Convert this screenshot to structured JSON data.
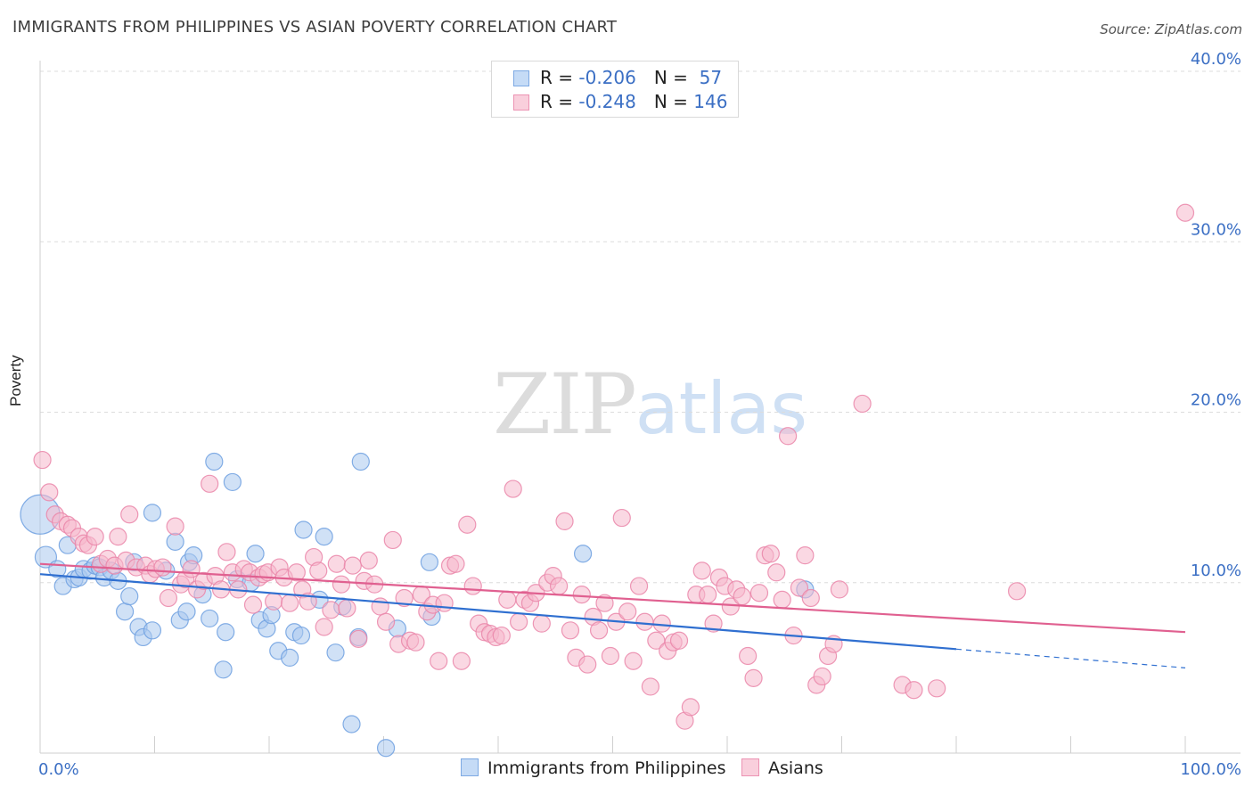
{
  "title": "IMMIGRANTS FROM PHILIPPINES VS ASIAN POVERTY CORRELATION CHART",
  "source": "Source: ZipAtlas.com",
  "watermark": {
    "zip": "ZIP",
    "atlas": "atlas"
  },
  "legend": {
    "rows": [
      {
        "r_label": "R = ",
        "r_value": "-0.206",
        "n_label": "N = ",
        "n_value": " 57",
        "color": "#a9c8ef"
      },
      {
        "r_label": "R = ",
        "r_value": "-0.248",
        "n_label": "N = ",
        "n_value": "146",
        "color": "#f5b8cc"
      }
    ]
  },
  "bottom_legend": [
    {
      "label": "Immigrants from Philippines",
      "color": "#a9c8ef"
    },
    {
      "label": "Asians",
      "color": "#f5b8cc"
    }
  ],
  "chart_data": {
    "type": "scatter",
    "title": "IMMIGRANTS FROM PHILIPPINES VS ASIAN POVERTY CORRELATION CHART",
    "xlabel": "",
    "ylabel": "Poverty",
    "xlim": [
      0,
      100
    ],
    "ylim": [
      0,
      40
    ],
    "x_tick_labels": [
      "0.0%",
      "100.0%"
    ],
    "y_ticks": [
      10,
      20,
      30,
      40
    ],
    "y_tick_labels": [
      "10.0%",
      "20.0%",
      "30.0%",
      "40.0%"
    ],
    "grid": true,
    "legend_position": "top-center",
    "series": [
      {
        "name": "Immigrants from Philippines",
        "color": "#6fa0e0",
        "fill": "#a9c8ef",
        "line_color": "#2f6fd0",
        "trend": {
          "x0": 0,
          "y0": 10.5,
          "x1": 80,
          "y1": 6.1,
          "dash_to_x": 100,
          "dash_to_y": 5.0
        },
        "points": [
          [
            0,
            14.0
          ],
          [
            0.5,
            11.5
          ],
          [
            1.5,
            10.8
          ],
          [
            2,
            9.8
          ],
          [
            2.4,
            12.2
          ],
          [
            3,
            10.2
          ],
          [
            3.4,
            10.3
          ],
          [
            3.8,
            10.8
          ],
          [
            4.4,
            10.7
          ],
          [
            4.8,
            11.0
          ],
          [
            5.2,
            10.9
          ],
          [
            5.6,
            10.3
          ],
          [
            6.2,
            10.7
          ],
          [
            6.8,
            10.1
          ],
          [
            7.4,
            8.3
          ],
          [
            7.8,
            9.2
          ],
          [
            8.2,
            11.2
          ],
          [
            8.6,
            7.4
          ],
          [
            9.0,
            6.8
          ],
          [
            9.8,
            7.2
          ],
          [
            9.8,
            14.1
          ],
          [
            11,
            10.7
          ],
          [
            11.8,
            12.4
          ],
          [
            12.2,
            7.8
          ],
          [
            12.8,
            8.3
          ],
          [
            13,
            11.2
          ],
          [
            13.4,
            11.6
          ],
          [
            14.2,
            9.3
          ],
          [
            14.8,
            7.9
          ],
          [
            15.2,
            17.1
          ],
          [
            16,
            4.9
          ],
          [
            16.2,
            7.1
          ],
          [
            16.8,
            15.9
          ],
          [
            17.2,
            10.2
          ],
          [
            18.4,
            10.0
          ],
          [
            18.8,
            11.7
          ],
          [
            19.2,
            7.8
          ],
          [
            19.8,
            7.3
          ],
          [
            20.2,
            8.1
          ],
          [
            20.8,
            6.0
          ],
          [
            21.8,
            5.6
          ],
          [
            22.2,
            7.1
          ],
          [
            22.8,
            6.9
          ],
          [
            23,
            13.1
          ],
          [
            24.4,
            9.0
          ],
          [
            24.8,
            12.7
          ],
          [
            25.8,
            5.9
          ],
          [
            26.4,
            8.6
          ],
          [
            27.2,
            1.7
          ],
          [
            27.8,
            6.8
          ],
          [
            28,
            17.1
          ],
          [
            30.2,
            0.3
          ],
          [
            31.2,
            7.3
          ],
          [
            34,
            11.2
          ],
          [
            34.2,
            8.0
          ],
          [
            47.4,
            11.7
          ],
          [
            66.8,
            9.6
          ]
        ]
      },
      {
        "name": "Asians",
        "color": "#ea86a9",
        "fill": "#f5b8cc",
        "line_color": "#e06090",
        "trend": {
          "x0": 0,
          "y0": 11.1,
          "x1": 100,
          "y1": 7.1
        },
        "points": [
          [
            0.2,
            17.2
          ],
          [
            0.8,
            15.3
          ],
          [
            1.3,
            14.0
          ],
          [
            1.8,
            13.6
          ],
          [
            2.4,
            13.4
          ],
          [
            2.8,
            13.2
          ],
          [
            3.4,
            12.7
          ],
          [
            3.8,
            12.3
          ],
          [
            4.2,
            12.2
          ],
          [
            4.8,
            12.7
          ],
          [
            5.3,
            11.1
          ],
          [
            5.9,
            11.4
          ],
          [
            6.5,
            11.0
          ],
          [
            6.8,
            12.7
          ],
          [
            7.5,
            11.3
          ],
          [
            7.8,
            14.0
          ],
          [
            8.4,
            10.9
          ],
          [
            9.2,
            11.0
          ],
          [
            9.6,
            10.5
          ],
          [
            10.1,
            10.8
          ],
          [
            10.7,
            10.9
          ],
          [
            11.2,
            9.1
          ],
          [
            11.8,
            13.3
          ],
          [
            12.3,
            9.9
          ],
          [
            12.7,
            10.2
          ],
          [
            13.2,
            10.8
          ],
          [
            13.7,
            9.6
          ],
          [
            14.3,
            10.1
          ],
          [
            14.8,
            15.8
          ],
          [
            15.3,
            10.4
          ],
          [
            15.8,
            9.6
          ],
          [
            16.3,
            11.8
          ],
          [
            16.8,
            10.6
          ],
          [
            17.3,
            9.6
          ],
          [
            17.8,
            10.8
          ],
          [
            18.3,
            10.6
          ],
          [
            18.6,
            8.7
          ],
          [
            19.1,
            10.3
          ],
          [
            19.5,
            10.5
          ],
          [
            19.9,
            10.6
          ],
          [
            20.4,
            8.9
          ],
          [
            20.9,
            10.9
          ],
          [
            21.3,
            10.3
          ],
          [
            21.8,
            8.8
          ],
          [
            22.4,
            10.6
          ],
          [
            22.9,
            9.6
          ],
          [
            23.4,
            8.9
          ],
          [
            23.9,
            11.5
          ],
          [
            24.3,
            10.7
          ],
          [
            24.8,
            7.4
          ],
          [
            25.4,
            8.4
          ],
          [
            25.9,
            11.1
          ],
          [
            26.3,
            9.9
          ],
          [
            26.8,
            8.5
          ],
          [
            27.3,
            11.0
          ],
          [
            27.8,
            6.7
          ],
          [
            28.3,
            10.1
          ],
          [
            28.7,
            11.3
          ],
          [
            29.2,
            9.9
          ],
          [
            29.7,
            8.6
          ],
          [
            30.2,
            7.7
          ],
          [
            30.8,
            12.5
          ],
          [
            31.3,
            6.4
          ],
          [
            31.8,
            9.1
          ],
          [
            32.3,
            6.6
          ],
          [
            32.8,
            6.5
          ],
          [
            33.3,
            9.3
          ],
          [
            33.8,
            8.3
          ],
          [
            34.3,
            8.7
          ],
          [
            34.8,
            5.4
          ],
          [
            35.3,
            8.8
          ],
          [
            35.8,
            11.0
          ],
          [
            36.3,
            11.1
          ],
          [
            36.8,
            5.4
          ],
          [
            37.3,
            13.4
          ],
          [
            37.8,
            9.8
          ],
          [
            38.3,
            7.6
          ],
          [
            38.8,
            7.1
          ],
          [
            39.3,
            7.0
          ],
          [
            39.8,
            6.8
          ],
          [
            40.3,
            6.9
          ],
          [
            40.8,
            9.0
          ],
          [
            41.3,
            15.5
          ],
          [
            41.8,
            7.7
          ],
          [
            42.3,
            9.0
          ],
          [
            42.8,
            8.8
          ],
          [
            43.3,
            9.4
          ],
          [
            43.8,
            7.6
          ],
          [
            44.3,
            10.0
          ],
          [
            44.8,
            10.4
          ],
          [
            45.3,
            9.8
          ],
          [
            45.8,
            13.6
          ],
          [
            46.3,
            7.2
          ],
          [
            46.8,
            5.6
          ],
          [
            47.3,
            9.3
          ],
          [
            47.8,
            5.2
          ],
          [
            48.3,
            8.0
          ],
          [
            48.8,
            7.2
          ],
          [
            49.3,
            8.8
          ],
          [
            49.8,
            5.7
          ],
          [
            50.3,
            7.7
          ],
          [
            50.8,
            13.8
          ],
          [
            51.3,
            8.3
          ],
          [
            51.8,
            5.4
          ],
          [
            52.3,
            9.8
          ],
          [
            52.8,
            7.7
          ],
          [
            53.3,
            3.9
          ],
          [
            53.8,
            6.6
          ],
          [
            54.3,
            7.6
          ],
          [
            54.8,
            6.0
          ],
          [
            55.3,
            6.5
          ],
          [
            55.8,
            6.6
          ],
          [
            56.3,
            1.9
          ],
          [
            56.8,
            2.7
          ],
          [
            57.3,
            9.3
          ],
          [
            57.8,
            10.7
          ],
          [
            58.3,
            9.3
          ],
          [
            58.8,
            7.6
          ],
          [
            59.3,
            10.3
          ],
          [
            59.8,
            9.8
          ],
          [
            60.3,
            8.6
          ],
          [
            60.8,
            9.6
          ],
          [
            61.3,
            9.2
          ],
          [
            61.8,
            5.7
          ],
          [
            62.3,
            4.4
          ],
          [
            62.8,
            9.4
          ],
          [
            63.3,
            11.6
          ],
          [
            63.8,
            11.7
          ],
          [
            64.3,
            10.6
          ],
          [
            64.8,
            9.0
          ],
          [
            65.3,
            18.6
          ],
          [
            65.8,
            6.9
          ],
          [
            66.3,
            9.7
          ],
          [
            66.8,
            11.6
          ],
          [
            67.3,
            9.1
          ],
          [
            67.8,
            4.0
          ],
          [
            68.3,
            4.5
          ],
          [
            68.8,
            5.7
          ],
          [
            69.3,
            6.4
          ],
          [
            69.8,
            9.6
          ],
          [
            71.8,
            20.5
          ],
          [
            75.3,
            4.0
          ],
          [
            76.3,
            3.7
          ],
          [
            78.3,
            3.8
          ],
          [
            85.3,
            9.5
          ],
          [
            100,
            31.7
          ]
        ]
      }
    ]
  }
}
